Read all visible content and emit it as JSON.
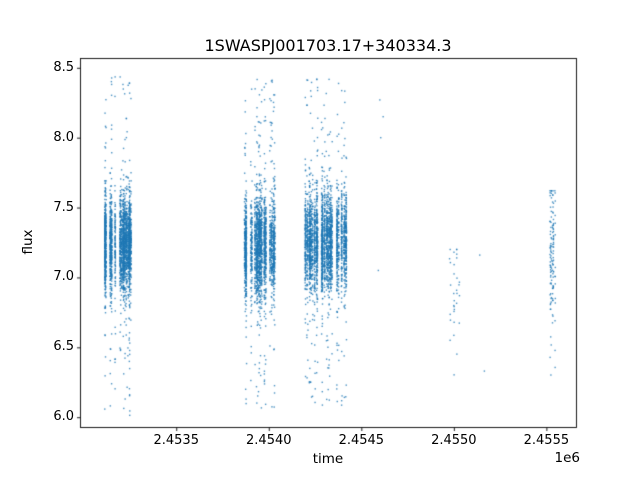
{
  "chart_data": {
    "type": "scatter",
    "title": "1SWASPJ001703.17+340334.3",
    "xlabel": "time",
    "ylabel": "flux",
    "x_offset_label": "1e6",
    "xlim": [
      2452980,
      2455660
    ],
    "ylim": [
      5.93,
      8.57
    ],
    "grid": false,
    "legend": "none",
    "marker_color": "#1f77b4",
    "marker_size_px": 1.4,
    "background": "#ffffff",
    "x_ticks": [
      {
        "value": 2453500,
        "label": "2.4535"
      },
      {
        "value": 2454000,
        "label": "2.4540"
      },
      {
        "value": 2454500,
        "label": "2.4545"
      },
      {
        "value": 2455000,
        "label": "2.4550"
      },
      {
        "value": 2455500,
        "label": "2.4555"
      }
    ],
    "y_ticks": [
      {
        "value": 6.0,
        "label": "6.0"
      },
      {
        "value": 6.5,
        "label": "6.5"
      },
      {
        "value": 7.0,
        "label": "7.0"
      },
      {
        "value": 7.5,
        "label": "7.5"
      },
      {
        "value": 8.0,
        "label": "8.0"
      },
      {
        "value": 8.5,
        "label": "8.5"
      }
    ],
    "clusters": [
      {
        "t_center": 2453180,
        "t_halfwidth": 78,
        "count": 2600,
        "flux_mean": 7.24,
        "flux_std": 0.17,
        "tail_frac": 0.07,
        "flux_min": 6.0,
        "flux_max": 8.45
      },
      {
        "t_center": 2453948,
        "t_halfwidth": 86,
        "count": 2300,
        "flux_mean": 7.22,
        "flux_std": 0.18,
        "tail_frac": 0.08,
        "flux_min": 6.02,
        "flux_max": 8.42
      },
      {
        "t_center": 2454306,
        "t_halfwidth": 118,
        "count": 2900,
        "flux_mean": 7.25,
        "flux_std": 0.18,
        "tail_frac": 0.08,
        "flux_min": 6.08,
        "flux_max": 8.42
      },
      {
        "t_center": 2455010,
        "t_halfwidth": 33,
        "count": 32,
        "flux_mean": 6.85,
        "flux_std": 0.22,
        "tail_frac": 0.0,
        "flux_min": 6.3,
        "flux_max": 7.2
      },
      {
        "t_center": 2455535,
        "t_halfwidth": 16,
        "count": 130,
        "flux_mean": 7.18,
        "flux_std": 0.28,
        "tail_frac": 0.1,
        "flux_min": 6.28,
        "flux_max": 7.62
      }
    ],
    "sparse_points": [
      [
        2454600,
        8.27
      ],
      [
        2454618,
        8.15
      ],
      [
        2454605,
        8.0
      ],
      [
        2454592,
        7.05
      ],
      [
        2455140,
        7.16
      ],
      [
        2455165,
        6.33
      ]
    ]
  }
}
